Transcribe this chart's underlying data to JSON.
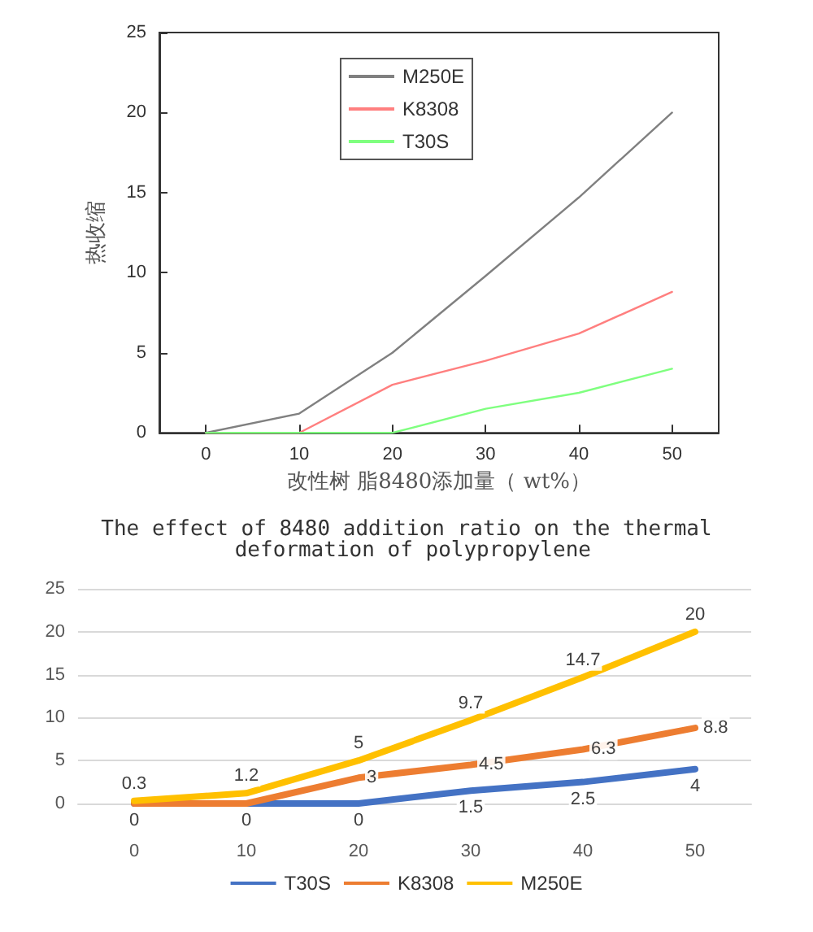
{
  "chart_data": [
    {
      "type": "line",
      "xlabel": "改性树 脂8480添加量（ wt%）",
      "ylabel": "热收缩",
      "x": [
        0,
        10,
        20,
        30,
        40,
        50
      ],
      "series": [
        {
          "name": "M250E",
          "color": "#808080",
          "values": [
            0,
            1.2,
            5,
            9.8,
            14.7,
            20
          ]
        },
        {
          "name": "K8308",
          "color": "#ff7f7f",
          "values": [
            0,
            0,
            3,
            4.5,
            6.2,
            8.8
          ]
        },
        {
          "name": "T30S",
          "color": "#7fff7f",
          "values": [
            0,
            0,
            0,
            1.5,
            2.5,
            4
          ]
        }
      ],
      "xlim": [
        -5,
        55
      ],
      "xticks": [
        0,
        10,
        20,
        30,
        40,
        50
      ],
      "ylim": [
        0,
        25
      ],
      "yticks": [
        0,
        5,
        10,
        15,
        20,
        25
      ],
      "grid": false,
      "legend": "top",
      "marker": "none"
    },
    {
      "type": "line",
      "title": "The effect of 8480 addition ratio on the thermal deformation of polypropylene",
      "categories": [
        "0",
        "10",
        "20",
        "30",
        "40",
        "50"
      ],
      "series": [
        {
          "name": "T30S",
          "color": "#4472c4",
          "values": [
            0,
            0,
            0,
            1.5,
            2.5,
            4
          ],
          "value_labels": [
            "0",
            "0",
            "0",
            "1.5",
            "2.5",
            "4"
          ]
        },
        {
          "name": "K8308",
          "color": "#ed7d31",
          "values": [
            0,
            0,
            3,
            4.5,
            6.3,
            8.8
          ],
          "value_labels": [
            null,
            null,
            "3",
            "4.5",
            "6.3",
            "8.8"
          ]
        },
        {
          "name": "M250E",
          "color": "#ffc000",
          "values": [
            0.3,
            1.2,
            5,
            9.7,
            14.7,
            20
          ],
          "value_labels": [
            "0.3",
            "1.2",
            "5",
            "9.7",
            "14.7",
            "20"
          ]
        }
      ],
      "ylim": [
        0,
        25
      ],
      "yticks": [
        0,
        5,
        10,
        15,
        20,
        25
      ],
      "grid": "y",
      "legend": "bottom",
      "marker": "none"
    }
  ]
}
